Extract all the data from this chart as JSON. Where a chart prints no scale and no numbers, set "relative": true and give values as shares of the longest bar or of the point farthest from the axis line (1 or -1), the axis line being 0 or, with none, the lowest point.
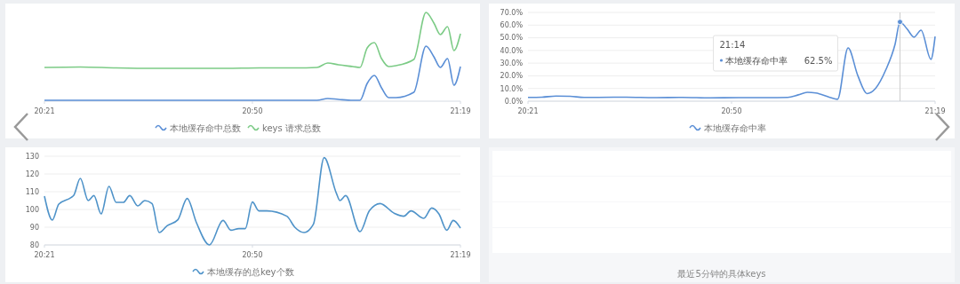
{
  "chart_data": [
    {
      "type": "line",
      "relative": true,
      "x": [
        20.35,
        20.4333,
        20.5167,
        20.6,
        20.6833,
        20.7667,
        20.85,
        20.9333,
        20.9833,
        21.0083,
        21.0333,
        21.0667,
        21.0833,
        21.1,
        21.1167,
        21.1333,
        21.15,
        21.1667,
        21.2083,
        21.2367,
        21.255,
        21.27,
        21.2867,
        21.3017,
        21.3167
      ],
      "xlim": [
        20.35,
        21.3167
      ],
      "xticks": [
        {
          "value": 20.35,
          "label": "20:21"
        },
        {
          "value": 20.8333,
          "label": "20:50"
        },
        {
          "value": 21.3167,
          "label": "21:19"
        }
      ],
      "legend": "bottom",
      "series": [
        {
          "name": "本地缓存命中总数",
          "color": "#5b8fd6",
          "values": [
            0.01,
            0.01,
            0.01,
            0.01,
            0.01,
            0.01,
            0.01,
            0.01,
            0.01,
            0.03,
            0.02,
            0.01,
            0.01,
            0.2,
            0.29,
            0.15,
            0.04,
            0.04,
            0.1,
            0.62,
            0.5,
            0.38,
            0.48,
            0.18,
            0.39
          ]
        },
        {
          "name": "keys 请求总数",
          "color": "#7ccb86",
          "values": [
            0.38,
            0.385,
            0.375,
            0.37,
            0.37,
            0.37,
            0.375,
            0.375,
            0.38,
            0.43,
            0.41,
            0.39,
            0.38,
            0.6,
            0.66,
            0.48,
            0.39,
            0.4,
            0.47,
            1.0,
            0.88,
            0.75,
            0.84,
            0.57,
            0.76
          ]
        }
      ]
    },
    {
      "type": "line",
      "x": [
        20.35,
        20.3833,
        20.4167,
        20.45,
        20.4833,
        20.5167,
        20.5833,
        20.65,
        20.7167,
        20.7833,
        20.85,
        20.9167,
        20.9667,
        20.9917,
        21.0133,
        21.0333,
        21.0667,
        21.085,
        21.11,
        21.1333,
        21.155,
        21.175,
        21.2,
        21.2217,
        21.2333,
        21.25,
        21.2667,
        21.2833,
        21.3067,
        21.3167
      ],
      "xlim": [
        20.35,
        21.3167
      ],
      "xticks": [
        {
          "value": 20.35,
          "label": "20:21"
        },
        {
          "value": 20.8333,
          "label": "20:50"
        },
        {
          "value": 21.3167,
          "label": "21:19"
        }
      ],
      "ylim": [
        0,
        70
      ],
      "yticks": [
        {
          "value": 0,
          "label": "0.0%"
        },
        {
          "value": 10,
          "label": "10.0%"
        },
        {
          "value": 20,
          "label": "20.0%"
        },
        {
          "value": 30,
          "label": "30.0%"
        },
        {
          "value": 40,
          "label": "40.0%"
        },
        {
          "value": 50,
          "label": "50.0%"
        },
        {
          "value": 60,
          "label": "60.0%"
        },
        {
          "value": 70,
          "label": "70.0%"
        }
      ],
      "grid": "y",
      "legend": "bottom",
      "ref_lines": [
        {
          "axis": "x",
          "value": 21.2333,
          "color": "#cccccc"
        }
      ],
      "annotations": [
        "21:14",
        "62.5%"
      ],
      "series": [
        {
          "name": "本地缓存命中率",
          "color": "#5b8fd6",
          "values": [
            3,
            3.2,
            4,
            3.8,
            3,
            3,
            3.2,
            2.8,
            3,
            2.6,
            2.8,
            2.8,
            3,
            5,
            7,
            6.5,
            3,
            1.5,
            42,
            20,
            6,
            10,
            25,
            45,
            62.5,
            57,
            50.5,
            56,
            33,
            51
          ]
        }
      ]
    },
    {
      "type": "line",
      "x": [
        20.35,
        20.3683,
        20.3833,
        20.4117,
        20.4183,
        20.4333,
        20.4517,
        20.465,
        20.4817,
        20.5,
        20.5167,
        20.5333,
        20.5483,
        20.5667,
        20.5833,
        20.6,
        20.6167,
        20.635,
        20.66,
        20.6817,
        20.7033,
        20.7333,
        20.765,
        20.7833,
        20.8017,
        20.8167,
        20.8333,
        20.8483,
        20.8667,
        20.9133,
        20.9317,
        20.9533,
        20.975,
        21.0,
        21.0283,
        21.0367,
        21.05,
        21.0833,
        21.105,
        21.13,
        21.1633,
        21.185,
        21.2017,
        21.2317,
        21.25,
        21.2667,
        21.285,
        21.3,
        21.3167
      ],
      "xlim": [
        20.35,
        21.3167
      ],
      "xticks": [
        {
          "value": 20.35,
          "label": "20:21"
        },
        {
          "value": 20.8333,
          "label": "20:50"
        },
        {
          "value": 21.3167,
          "label": "21:19"
        }
      ],
      "ylim": [
        80,
        130
      ],
      "yticks": [
        80,
        90,
        100,
        110,
        120,
        130
      ],
      "grid": "y",
      "legend": "bottom",
      "series": [
        {
          "name": "本地缓存的总key个数",
          "color": "#4f93c9",
          "values": [
            107.5,
            94,
            103,
            106.7,
            108,
            117.5,
            105,
            107.8,
            97.5,
            113,
            104,
            104,
            107.8,
            102,
            105,
            103.3,
            87,
            90.8,
            94.2,
            106.2,
            92.5,
            80,
            93.8,
            88.3,
            89.2,
            89.2,
            104.2,
            99.2,
            99.2,
            96.2,
            90,
            87,
            91.7,
            129.2,
            109.2,
            105,
            107.8,
            87.5,
            99.2,
            103.3,
            97.8,
            96.2,
            99.2,
            95,
            100.8,
            97.5,
            88.3,
            93.8,
            89.5
          ]
        }
      ]
    },
    {
      "type": "other",
      "annotations": [
        "最近5分钟的具体keys"
      ]
    }
  ]
}
